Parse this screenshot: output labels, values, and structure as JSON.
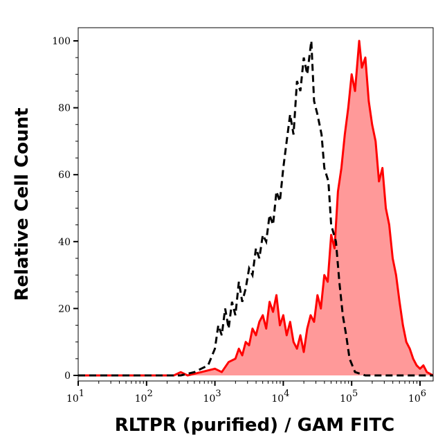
{
  "chart_data": {
    "type": "area",
    "title": "",
    "xlabel": "RLTPR (purified) / GAM FITC",
    "ylabel": "Relative Cell Count",
    "x_scale": "log",
    "xlim": [
      10,
      1550000
    ],
    "ylim": [
      0,
      105
    ],
    "grid": false,
    "x_ticks": [
      {
        "base": "10",
        "exp": "1",
        "value": 10
      },
      {
        "base": "10",
        "exp": "2",
        "value": 100
      },
      {
        "base": "10",
        "exp": "3",
        "value": 1000
      },
      {
        "base": "10",
        "exp": "4",
        "value": 10000
      },
      {
        "base": "10",
        "exp": "5",
        "value": 100000
      },
      {
        "base": "10",
        "exp": "6",
        "value": 1000000
      }
    ],
    "y_ticks": [
      "0",
      "20",
      "40",
      "60",
      "80",
      "100"
    ],
    "series": [
      {
        "style": "dashed-line",
        "color": "#000000",
        "log10_x": [
          1.0,
          2.5,
          2.7,
          2.8,
          2.9,
          3.0,
          3.05,
          3.1,
          3.15,
          3.2,
          3.25,
          3.3,
          3.35,
          3.4,
          3.45,
          3.5,
          3.55,
          3.6,
          3.65,
          3.7,
          3.75,
          3.8,
          3.85,
          3.9,
          3.95,
          4.0,
          4.05,
          4.1,
          4.15,
          4.2,
          4.25,
          4.3,
          4.35,
          4.41,
          4.45,
          4.5,
          4.56,
          4.6,
          4.66,
          4.7,
          4.77,
          4.82,
          4.87,
          4.92,
          4.97,
          5.05,
          5.2,
          5.5,
          5.8,
          6.19
        ],
        "y": [
          0,
          0,
          1,
          2,
          3,
          8,
          15,
          12,
          20,
          14,
          22,
          18,
          28,
          22,
          26,
          32,
          30,
          38,
          35,
          42,
          40,
          48,
          45,
          55,
          52,
          62,
          70,
          78,
          72,
          88,
          85,
          95,
          90,
          100,
          82,
          78,
          72,
          62,
          58,
          45,
          40,
          28,
          18,
          12,
          5,
          1,
          0,
          0,
          0,
          0
        ]
      },
      {
        "style": "filled",
        "color": "#ff0000",
        "fill": "#ff9999",
        "log10_x": [
          1.0,
          2.4,
          2.5,
          2.6,
          2.8,
          3.0,
          3.1,
          3.2,
          3.3,
          3.35,
          3.4,
          3.45,
          3.5,
          3.55,
          3.6,
          3.65,
          3.7,
          3.75,
          3.8,
          3.85,
          3.9,
          3.95,
          4.0,
          4.05,
          4.1,
          4.15,
          4.2,
          4.25,
          4.3,
          4.35,
          4.4,
          4.45,
          4.5,
          4.55,
          4.6,
          4.65,
          4.7,
          4.75,
          4.8,
          4.85,
          4.9,
          4.95,
          5.0,
          5.05,
          5.11,
          5.15,
          5.2,
          5.25,
          5.3,
          5.35,
          5.4,
          5.45,
          5.5,
          5.55,
          5.6,
          5.65,
          5.7,
          5.75,
          5.8,
          5.85,
          5.9,
          5.95,
          6.0,
          6.05,
          6.1,
          6.19
        ],
        "y": [
          0,
          0,
          1,
          0,
          1,
          2,
          1,
          4,
          5,
          8,
          6,
          10,
          9,
          14,
          12,
          16,
          18,
          14,
          22,
          19,
          24,
          15,
          18,
          12,
          16,
          10,
          8,
          12,
          7,
          14,
          18,
          16,
          24,
          20,
          30,
          28,
          42,
          38,
          55,
          62,
          72,
          80,
          90,
          85,
          100,
          92,
          95,
          82,
          75,
          70,
          58,
          62,
          50,
          45,
          35,
          30,
          22,
          15,
          10,
          8,
          5,
          3,
          2,
          3,
          1,
          0
        ]
      }
    ]
  }
}
